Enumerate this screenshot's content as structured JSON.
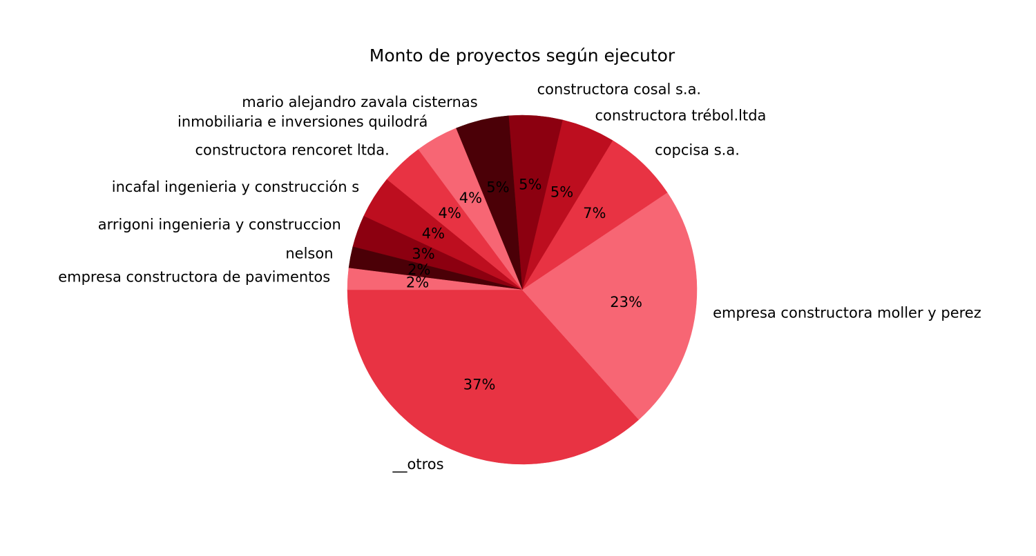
{
  "chart_data": {
    "type": "pie",
    "title": "Monto de proyectos según ejecutor",
    "start_angle_deg": 180,
    "direction": "counterclockwise",
    "slices": [
      {
        "label": "__otros",
        "value": 37,
        "pct_label": "37%",
        "color": "#e83343"
      },
      {
        "label": "empresa constructora moller y perez",
        "value": 23,
        "pct_label": "23%",
        "color": "#f76674"
      },
      {
        "label": "copcisa s.a.",
        "value": 7,
        "pct_label": "7%",
        "color": "#e83343"
      },
      {
        "label": "constructora trébol.ltda",
        "value": 5,
        "pct_label": "5%",
        "color": "#bd0e1f"
      },
      {
        "label": "constructora cosal s.a.",
        "value": 5,
        "pct_label": "5%",
        "color": "#8c0010"
      },
      {
        "label": "mario alejandro zavala cisternas",
        "value": 5,
        "pct_label": "5%",
        "color": "#4b0007"
      },
      {
        "label": "inmobiliaria e inversiones quilodrá",
        "value": 4,
        "pct_label": "4%",
        "color": "#f76674"
      },
      {
        "label": "constructora rencoret ltda.",
        "value": 4,
        "pct_label": "4%",
        "color": "#e83343"
      },
      {
        "label": "incafal ingenieria y construcción s",
        "value": 4,
        "pct_label": "4%",
        "color": "#bd0e1f"
      },
      {
        "label": "arrigoni ingenieria y construccion",
        "value": 3,
        "pct_label": "3%",
        "color": "#8c0010"
      },
      {
        "label": "nelson",
        "value": 2,
        "pct_label": "2%",
        "color": "#4b0007"
      },
      {
        "label": "empresa constructora de pavimentos",
        "value": 2,
        "pct_label": "2%",
        "color": "#f76674"
      }
    ]
  }
}
